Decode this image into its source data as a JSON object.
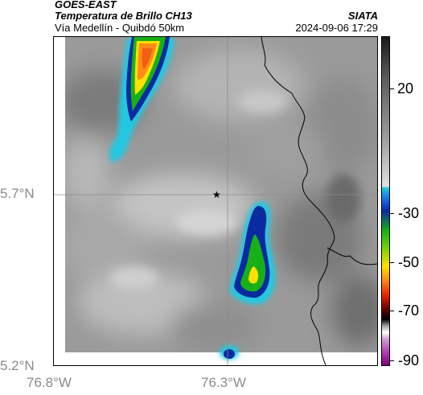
{
  "header": {
    "title1": "GOES-EAST",
    "title2": "Temperatura de Brillo CH13",
    "subtitle": "Vía Medellín - Quibdó 50km",
    "source": "SIATA",
    "datetime": "2024-09-06 17:29"
  },
  "map": {
    "lat_ticks": [
      "5.7°N",
      "5.2°N"
    ],
    "lon_ticks": [
      "76.8°W",
      "76.3°W"
    ],
    "marker": "star"
  },
  "colorbar": {
    "labels": [
      "20",
      "-30",
      "-50",
      "-70",
      "-90"
    ]
  },
  "colors": {
    "cold_core": "#ff8c1a",
    "deep_cold": "#0a2aa0",
    "mid_cold": "#18b018",
    "edge_cold": "#20c8e0"
  }
}
